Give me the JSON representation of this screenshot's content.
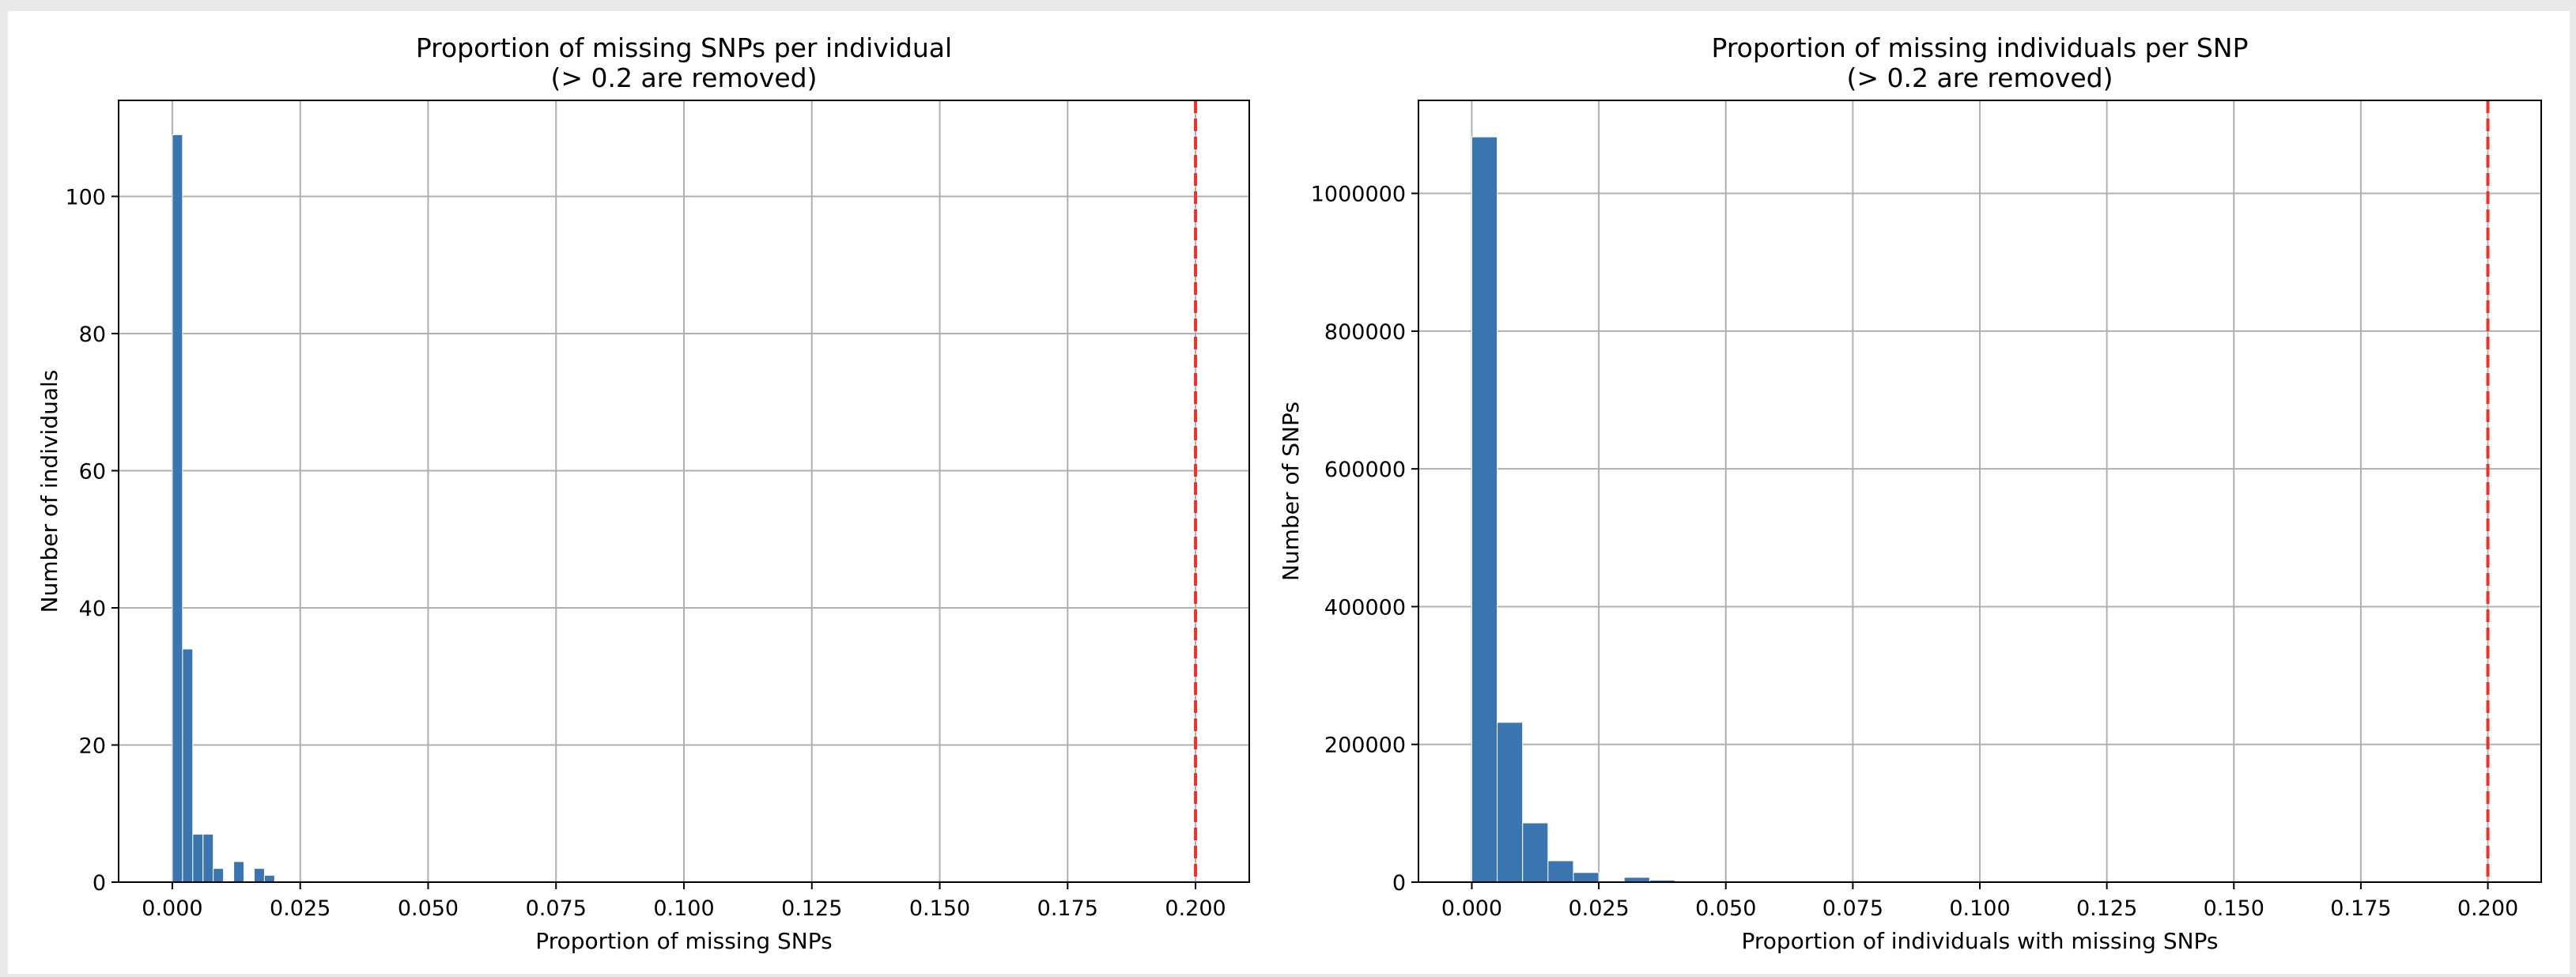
{
  "chart_data": [
    {
      "type": "bar",
      "title_line1": "Proportion of missing SNPs per individual",
      "title_line2": "(> 0.2 are removed)",
      "xlabel": "Proportion of missing SNPs",
      "ylabel": "Number of individuals",
      "xlim": [
        -0.0105,
        0.2105
      ],
      "ylim": [
        0,
        114
      ],
      "xticks": [
        0.0,
        0.025,
        0.05,
        0.075,
        0.1,
        0.125,
        0.15,
        0.175,
        0.2
      ],
      "xtick_labels": [
        "0.000",
        "0.025",
        "0.050",
        "0.075",
        "0.100",
        "0.125",
        "0.150",
        "0.175",
        "0.200"
      ],
      "yticks": [
        0,
        20,
        40,
        60,
        80,
        100
      ],
      "ytick_labels": [
        "0",
        "20",
        "40",
        "60",
        "80",
        "100"
      ],
      "grid": true,
      "bar_color": "#3a75b0",
      "threshold": 0.2,
      "threshold_color": "#e8342a",
      "bins": [
        {
          "x0": 0.0,
          "x1": 0.002,
          "value": 109
        },
        {
          "x0": 0.002,
          "x1": 0.004,
          "value": 34
        },
        {
          "x0": 0.004,
          "x1": 0.006,
          "value": 7
        },
        {
          "x0": 0.006,
          "x1": 0.008,
          "value": 7
        },
        {
          "x0": 0.008,
          "x1": 0.01,
          "value": 2
        },
        {
          "x0": 0.01,
          "x1": 0.012,
          "value": 0
        },
        {
          "x0": 0.012,
          "x1": 0.014,
          "value": 3
        },
        {
          "x0": 0.014,
          "x1": 0.016,
          "value": 0
        },
        {
          "x0": 0.016,
          "x1": 0.018,
          "value": 2
        },
        {
          "x0": 0.018,
          "x1": 0.02,
          "value": 1
        }
      ]
    },
    {
      "type": "bar",
      "title_line1": "Proportion of missing individuals per SNP",
      "title_line2": "(> 0.2 are removed)",
      "xlabel": "Proportion of individuals with missing SNPs",
      "ylabel": "Number of SNPs",
      "xlim": [
        -0.0105,
        0.2105
      ],
      "ylim": [
        0,
        1135000
      ],
      "xticks": [
        0.0,
        0.025,
        0.05,
        0.075,
        0.1,
        0.125,
        0.15,
        0.175,
        0.2
      ],
      "xtick_labels": [
        "0.000",
        "0.025",
        "0.050",
        "0.075",
        "0.100",
        "0.125",
        "0.150",
        "0.175",
        "0.200"
      ],
      "yticks": [
        0,
        200000,
        400000,
        600000,
        800000,
        1000000
      ],
      "ytick_labels": [
        "0",
        "200000",
        "400000",
        "600000",
        "800000",
        "1000000"
      ],
      "grid": true,
      "bar_color": "#3a75b0",
      "threshold": 0.2,
      "threshold_color": "#e8342a",
      "bins": [
        {
          "x0": 0.0,
          "x1": 0.005,
          "value": 1082000
        },
        {
          "x0": 0.005,
          "x1": 0.01,
          "value": 232000
        },
        {
          "x0": 0.01,
          "x1": 0.015,
          "value": 86000
        },
        {
          "x0": 0.015,
          "x1": 0.02,
          "value": 31000
        },
        {
          "x0": 0.02,
          "x1": 0.025,
          "value": 14000
        },
        {
          "x0": 0.025,
          "x1": 0.03,
          "value": 1500
        },
        {
          "x0": 0.03,
          "x1": 0.035,
          "value": 7000
        },
        {
          "x0": 0.035,
          "x1": 0.04,
          "value": 3000
        },
        {
          "x0": 0.04,
          "x1": 0.045,
          "value": 1500
        },
        {
          "x0": 0.045,
          "x1": 0.05,
          "value": 700
        }
      ]
    }
  ]
}
